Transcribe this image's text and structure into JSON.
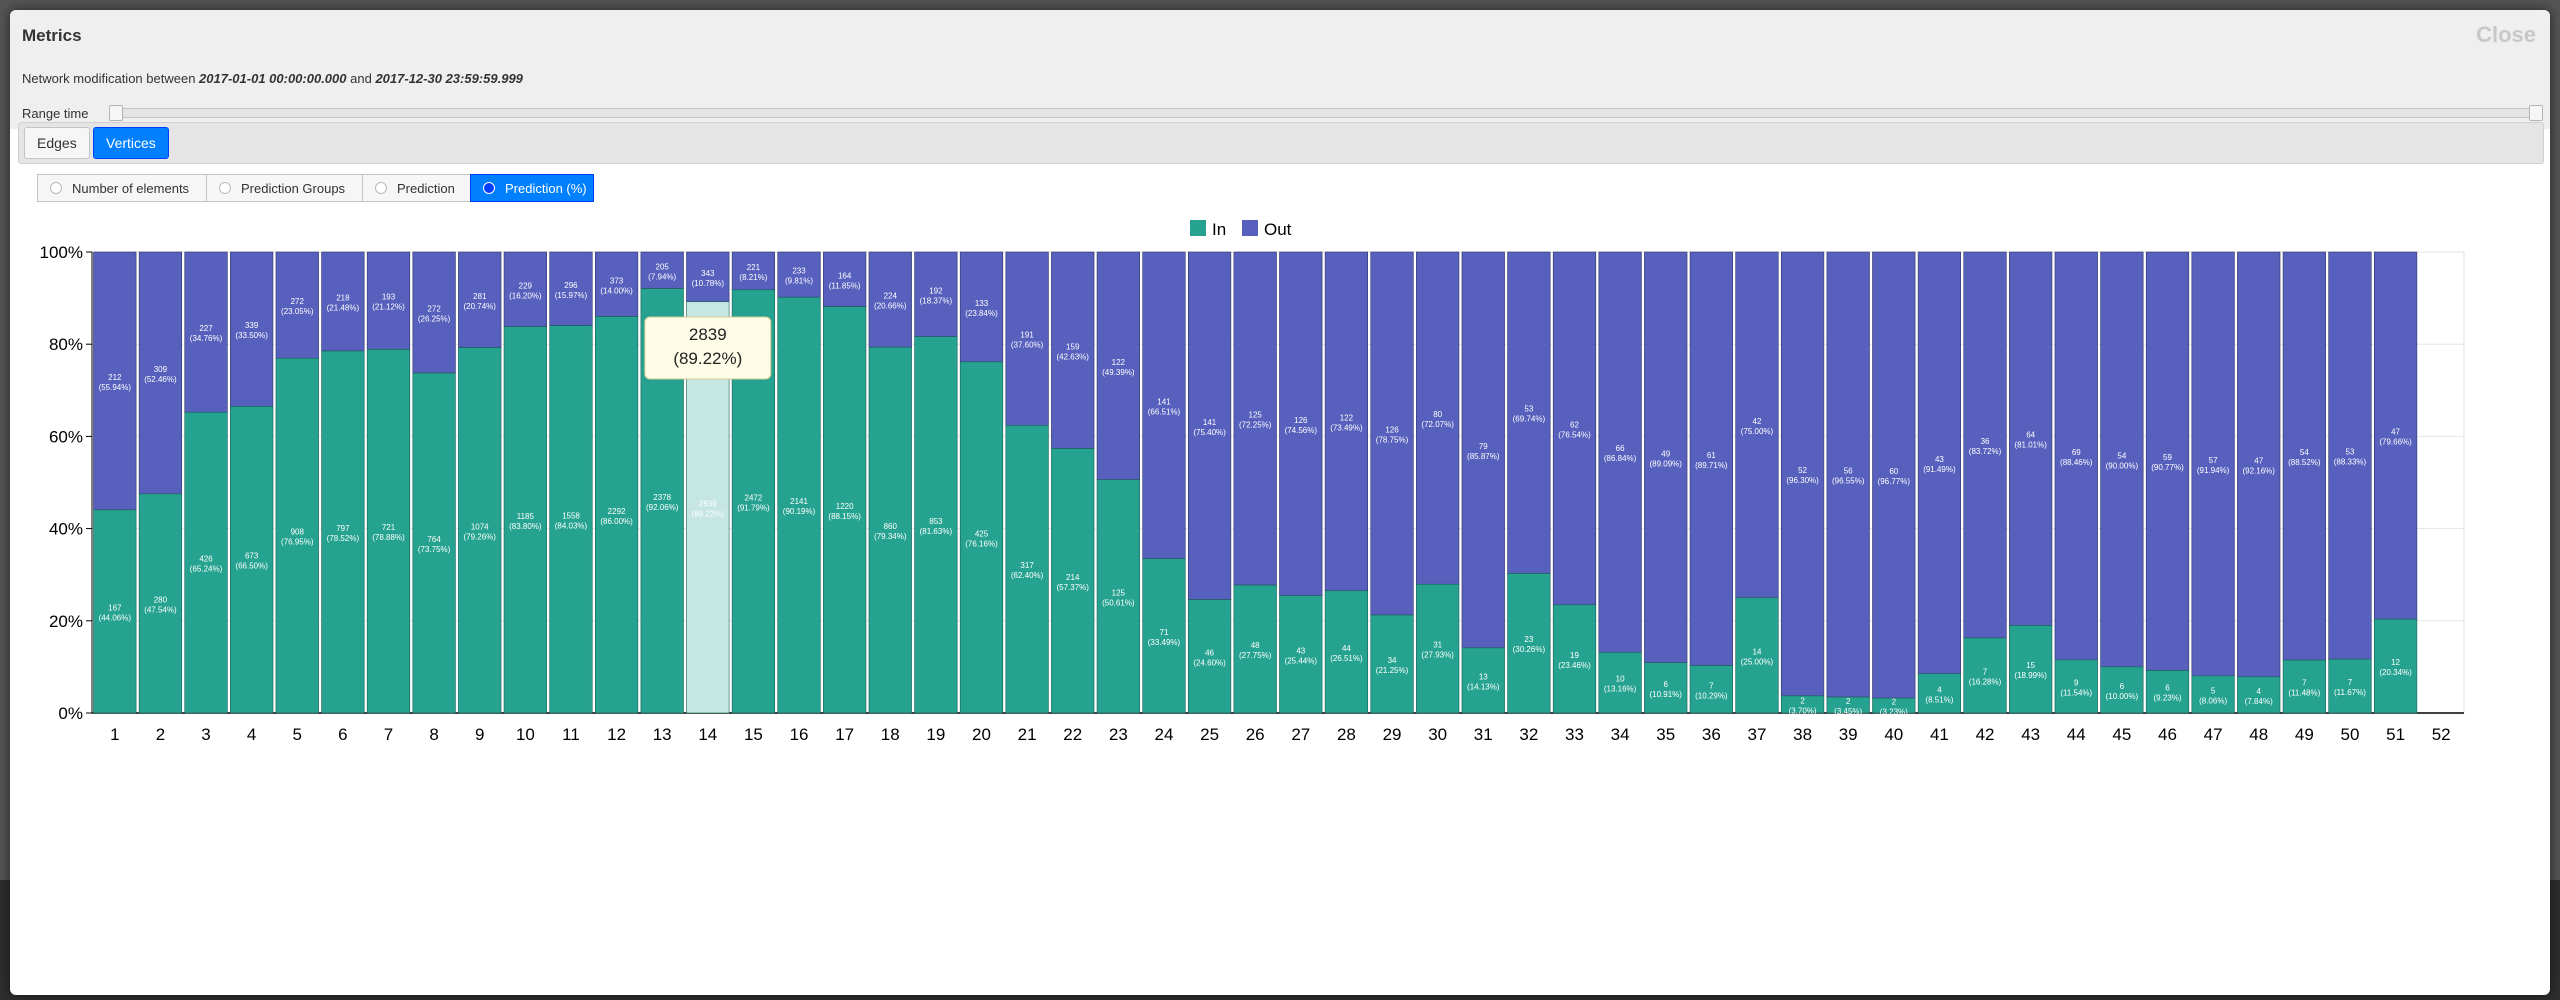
{
  "modal": {
    "title": "Metrics",
    "close_label": "Close"
  },
  "period": {
    "prefix": "Network modification between",
    "start": "2017-01-01 00:00:00.000",
    "middle": "and",
    "end": "2017-12-30 23:59:59.999"
  },
  "range": {
    "label": "Range time"
  },
  "tabs": [
    {
      "label": "Edges",
      "active": false
    },
    {
      "label": "Vertices",
      "active": true
    }
  ],
  "modes": [
    {
      "label": "Number of elements",
      "active": false
    },
    {
      "label": "Prediction Groups",
      "active": false
    },
    {
      "label": "Prediction",
      "active": false
    },
    {
      "label": "Prediction (%)",
      "active": true
    }
  ],
  "colors": {
    "in": "#26a390",
    "out": "#5760bd",
    "highlight": "#c5e6e2"
  },
  "tooltip": {
    "week": 14,
    "value": "2839",
    "percent": "(89.22%)"
  },
  "chart_data": {
    "type": "bar",
    "stacked": true,
    "normalized": true,
    "legend": [
      "In",
      "Out"
    ],
    "legend_position": "top-center",
    "ylim": [
      0,
      100
    ],
    "yticks": [
      "0%",
      "20%",
      "40%",
      "60%",
      "80%",
      "100%"
    ],
    "grid": true,
    "categories": [
      "1",
      "2",
      "3",
      "4",
      "5",
      "6",
      "7",
      "8",
      "9",
      "10",
      "11",
      "12",
      "13",
      "14",
      "15",
      "16",
      "17",
      "18",
      "19",
      "20",
      "21",
      "22",
      "23",
      "24",
      "25",
      "26",
      "27",
      "28",
      "29",
      "30",
      "31",
      "32",
      "33",
      "34",
      "35",
      "36",
      "37",
      "38",
      "39",
      "40",
      "41",
      "42",
      "43",
      "44",
      "45",
      "46",
      "47",
      "48",
      "49",
      "50",
      "51",
      "52"
    ],
    "series": [
      {
        "name": "In",
        "values": [
          167,
          280,
          426,
          673,
          908,
          797,
          721,
          764,
          1074,
          1185,
          1558,
          2292,
          2378,
          2839,
          2472,
          2141,
          1220,
          860,
          853,
          425,
          317,
          214,
          125,
          71,
          46,
          48,
          43,
          44,
          34,
          31,
          13,
          23,
          19,
          10,
          6,
          7,
          14,
          2,
          2,
          2,
          4,
          7,
          15,
          9,
          6,
          6,
          5,
          4,
          7,
          7,
          12,
          null
        ],
        "percent_labels": [
          "(44.06%)",
          "(47.54%)",
          "(65.24%)",
          "(66.50%)",
          "(76.95%)",
          "(78.52%)",
          "(78.88%)",
          "(73.75%)",
          "(79.26%)",
          "(83.80%)",
          "(84.03%)",
          "(86.00%)",
          "(92.06%)",
          "(89.22%)",
          "(91.79%)",
          "(90.19%)",
          "(88.15%)",
          "(79.34%)",
          "(81.63%)",
          "(76.16%)",
          "(62.40%)",
          "(57.37%)",
          "(50.61%)",
          "(33.49%)",
          "(24.60%)",
          "(27.75%)",
          "(25.44%)",
          "(26.51%)",
          "(21.25%)",
          "(27.93%)",
          "(14.13%)",
          "(30.26%)",
          "(23.46%)",
          "(13.16%)",
          "(10.91%)",
          "(10.29%)",
          "(25.00%)",
          "(3.70%)",
          "(3.45%)",
          "(3.23%)",
          "(8.51%)",
          "(16.28%)",
          "(18.99%)",
          "(11.54%)",
          "(10.00%)",
          "(9.23%)",
          "(8.06%)",
          "(7.84%)",
          "(11.48%)",
          "(11.67%)",
          "(20.34%)",
          ""
        ]
      },
      {
        "name": "Out",
        "values": [
          212,
          309,
          227,
          339,
          272,
          218,
          193,
          272,
          281,
          229,
          296,
          373,
          205,
          343,
          221,
          233,
          164,
          224,
          192,
          133,
          191,
          159,
          122,
          141,
          141,
          125,
          126,
          122,
          126,
          80,
          79,
          53,
          62,
          66,
          49,
          61,
          42,
          52,
          56,
          60,
          43,
          36,
          64,
          69,
          54,
          59,
          57,
          47,
          54,
          53,
          47,
          null
        ],
        "percent_labels": [
          "(55.94%)",
          "(52.46%)",
          "(34.76%)",
          "(33.50%)",
          "(23.05%)",
          "(21.48%)",
          "(21.12%)",
          "(26.25%)",
          "(20.74%)",
          "(16.20%)",
          "(15.97%)",
          "(14.00%)",
          "(7.94%)",
          "(10.78%)",
          "(8.21%)",
          "(9.81%)",
          "(11.85%)",
          "(20.66%)",
          "(18.37%)",
          "(23.84%)",
          "(37.60%)",
          "(42.63%)",
          "(49.39%)",
          "(66.51%)",
          "(75.40%)",
          "(72.25%)",
          "(74.56%)",
          "(73.49%)",
          "(78.75%)",
          "(72.07%)",
          "(85.87%)",
          "(69.74%)",
          "(76.54%)",
          "(86.84%)",
          "(89.09%)",
          "(89.71%)",
          "(75.00%)",
          "(96.30%)",
          "(96.55%)",
          "(96.77%)",
          "(91.49%)",
          "(83.72%)",
          "(81.01%)",
          "(88.46%)",
          "(90.00%)",
          "(90.77%)",
          "(91.94%)",
          "(92.16%)",
          "(88.52%)",
          "(88.33%)",
          "(79.66%)",
          ""
        ]
      }
    ]
  }
}
